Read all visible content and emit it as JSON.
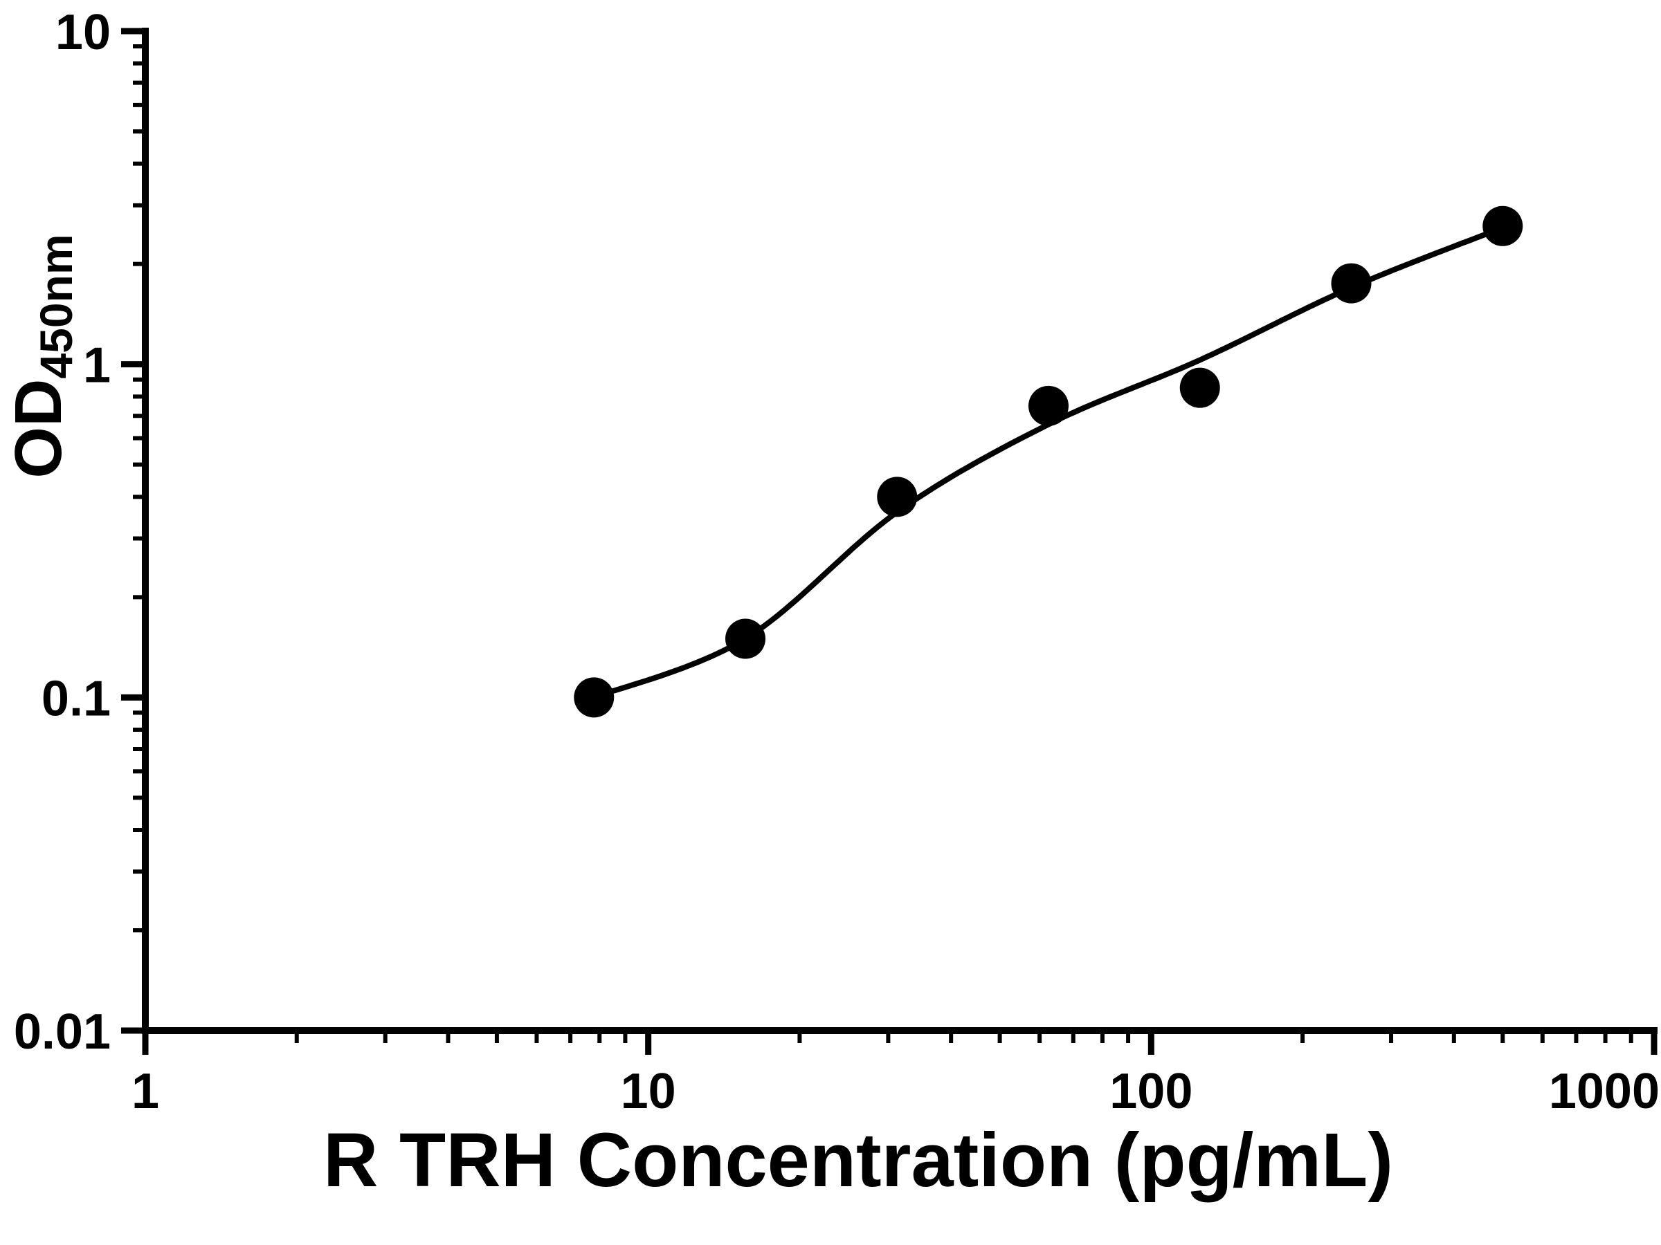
{
  "figure": {
    "background_color": "#ffffff",
    "foreground_color": "#000000"
  },
  "chart_data": {
    "type": "scatter",
    "title": "",
    "xlabel": "R TRH Concentration (pg/mL)",
    "ylabel": "OD450nm",
    "ylabel_main": "OD",
    "ylabel_sub": "450nm",
    "x_scale": "log",
    "y_scale": "log",
    "xlim": [
      1,
      1000
    ],
    "ylim": [
      0.01,
      10
    ],
    "x_ticks": [
      "1",
      "10",
      "100",
      "1000"
    ],
    "y_ticks": [
      "0.01",
      "0.1",
      "1",
      "10"
    ],
    "minor_log_ticks": true,
    "grid": false,
    "legend": "none",
    "marker": "filled-circle",
    "marker_color": "#000000",
    "line_color": "#000000",
    "data_points": [
      {
        "x": 7.8,
        "y": 0.1
      },
      {
        "x": 15.6,
        "y": 0.15
      },
      {
        "x": 31.25,
        "y": 0.4
      },
      {
        "x": 62.5,
        "y": 0.75
      },
      {
        "x": 125,
        "y": 0.85
      },
      {
        "x": 250,
        "y": 1.75
      },
      {
        "x": 500,
        "y": 2.6
      }
    ],
    "fit_curve": [
      {
        "x": 7.8,
        "y": 0.1
      },
      {
        "x": 15.6,
        "y": 0.15
      },
      {
        "x": 31.25,
        "y": 0.36
      },
      {
        "x": 62.5,
        "y": 0.66
      },
      {
        "x": 125,
        "y": 1.03
      },
      {
        "x": 250,
        "y": 1.7
      },
      {
        "x": 500,
        "y": 2.57
      }
    ]
  }
}
